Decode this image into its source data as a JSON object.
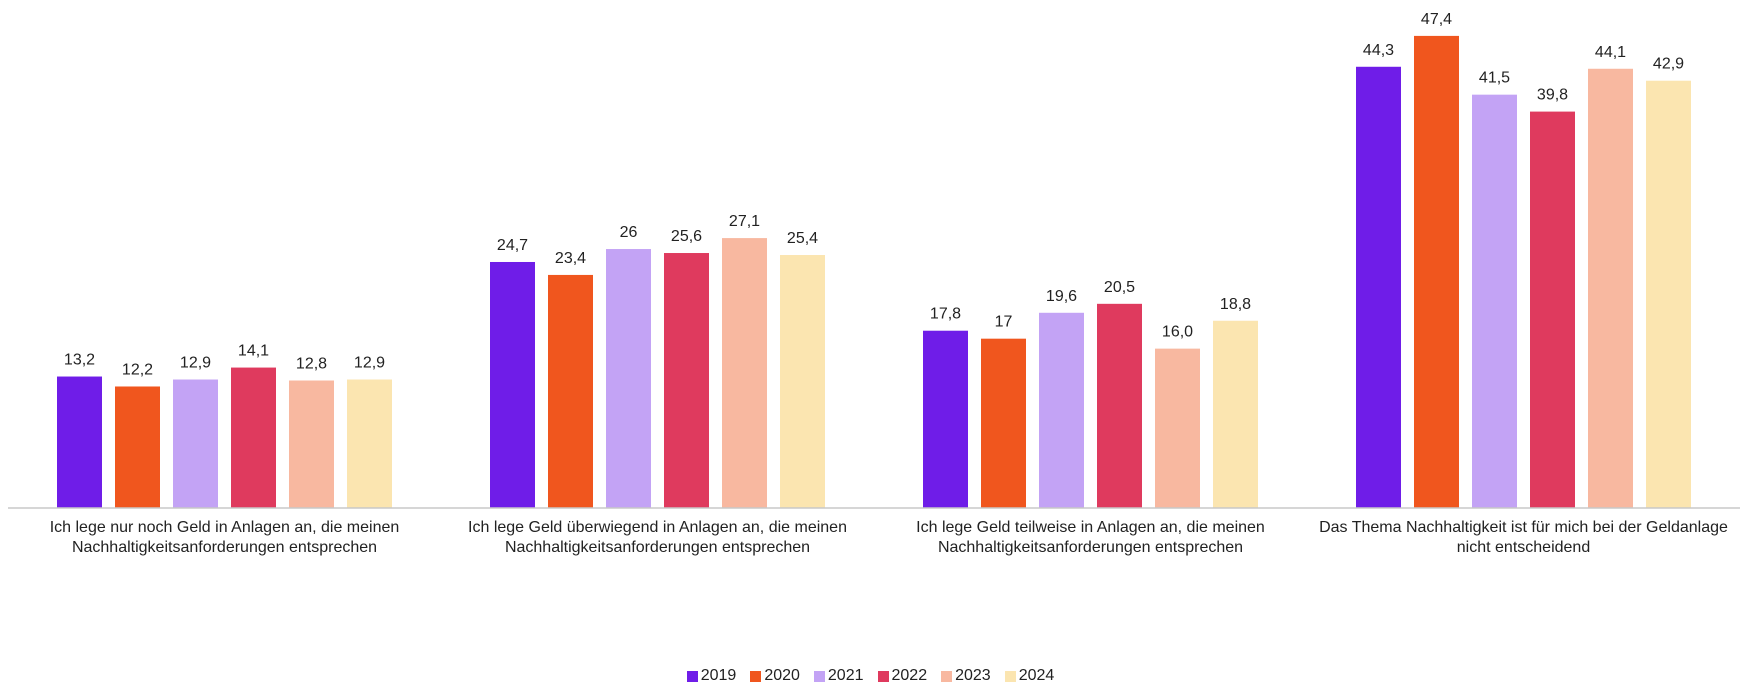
{
  "chart_data": {
    "type": "bar",
    "categories": [
      "Ich lege nur noch Geld in Anlagen an, die meinen Nachhaltigkeitsanforderungen entsprechen",
      "Ich lege Geld überwiegend in Anlagen an, die meinen Nachhaltigkeitsanforderungen entsprechen",
      "Ich lege Geld teilweise in Anlagen an, die meinen Nachhaltigkeitsanforderungen entsprechen",
      "Das Thema Nachhaltigkeit ist für mich bei der Geldanlage nicht entscheidend"
    ],
    "series": [
      {
        "name": "2019",
        "color": "#6f1de8",
        "values": [
          13.2,
          24.7,
          17.8,
          44.3
        ],
        "value_labels": [
          "13,2",
          "24,7",
          "17,8",
          "44,3"
        ]
      },
      {
        "name": "2020",
        "color": "#f0561e",
        "values": [
          12.2,
          23.4,
          17,
          47.4
        ],
        "value_labels": [
          "12,2",
          "23,4",
          "17",
          "47,4"
        ]
      },
      {
        "name": "2021",
        "color": "#c3a3f5",
        "values": [
          12.9,
          26,
          19.6,
          41.5
        ],
        "value_labels": [
          "12,9",
          "26",
          "19,6",
          "41,5"
        ]
      },
      {
        "name": "2022",
        "color": "#df3a5e",
        "values": [
          14.1,
          25.6,
          20.5,
          39.8
        ],
        "value_labels": [
          "14,1",
          "25,6",
          "20,5",
          "39,8"
        ]
      },
      {
        "name": "2023",
        "color": "#f8b8a0",
        "values": [
          12.8,
          27.1,
          16.0,
          44.1
        ],
        "value_labels": [
          "12,8",
          "27,1",
          "16,0",
          "44,1"
        ]
      },
      {
        "name": "2024",
        "color": "#fbe5b0",
        "values": [
          12.9,
          25.4,
          18.8,
          42.9
        ],
        "value_labels": [
          "12,9",
          "25,4",
          "18,8",
          "42,9"
        ]
      }
    ],
    "ylim": [
      0,
      50
    ],
    "legend": "bottom"
  }
}
